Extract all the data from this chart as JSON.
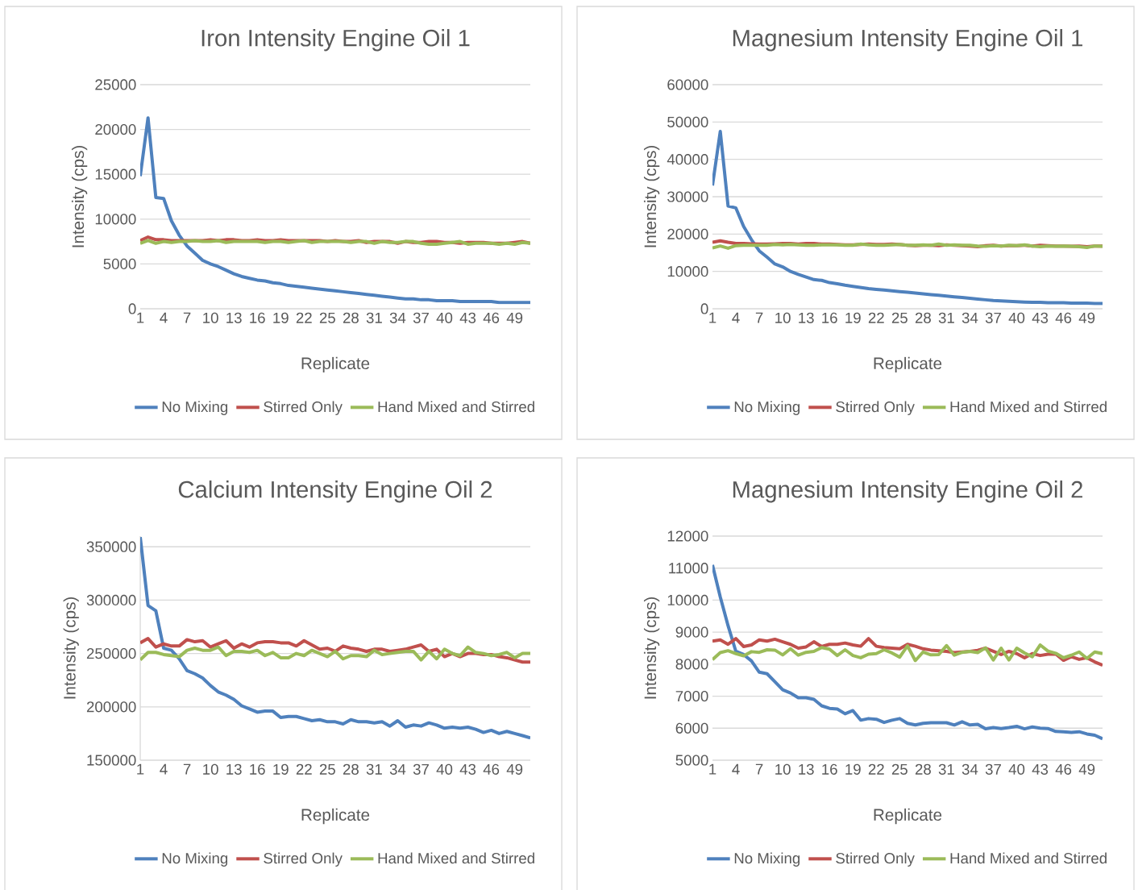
{
  "chart_data": [
    {
      "type": "line",
      "title": "Iron Intensity Engine Oil 1",
      "xlabel": "Replicate",
      "ylabel": "Intensity (cps)",
      "categories": [
        "1",
        null,
        null,
        "4",
        null,
        null,
        "7",
        null,
        null,
        "10",
        null,
        null,
        "13",
        null,
        null,
        "16",
        null,
        null,
        "19",
        null,
        null,
        "22",
        null,
        null,
        "25",
        null,
        null,
        "28",
        null,
        null,
        "31",
        null,
        null,
        "34",
        null,
        null,
        "37",
        null,
        null,
        "40",
        null,
        null,
        "43",
        null,
        null,
        "46",
        null,
        null,
        "49",
        null,
        null
      ],
      "series": [
        {
          "name": "No Mixing",
          "color": "#4f81bd",
          "values": [
            14800,
            21300,
            12400,
            12300,
            9800,
            8200,
            7000,
            6200,
            5400,
            5000,
            4700,
            4300,
            3900,
            3600,
            3400,
            3200,
            3100,
            2900,
            2800,
            2600,
            2500,
            2400,
            2300,
            2200,
            2100,
            2000,
            1900,
            1800,
            1700,
            1600,
            1500,
            1400,
            1300,
            1200,
            1100,
            1100,
            1000,
            1000,
            900,
            900,
            900,
            800,
            800,
            800,
            800,
            800,
            700,
            700,
            700,
            700,
            700
          ]
        },
        {
          "name": "Stirred Only",
          "color": "#c0504d",
          "values": [
            7600,
            8000,
            7700,
            7700,
            7600,
            7600,
            7600,
            7600,
            7600,
            7700,
            7600,
            7700,
            7700,
            7600,
            7600,
            7700,
            7600,
            7600,
            7700,
            7600,
            7600,
            7600,
            7600,
            7600,
            7500,
            7600,
            7500,
            7500,
            7600,
            7400,
            7500,
            7500,
            7500,
            7300,
            7500,
            7400,
            7400,
            7500,
            7500,
            7400,
            7400,
            7300,
            7400,
            7400,
            7400,
            7300,
            7300,
            7300,
            7400,
            7500,
            7300
          ]
        },
        {
          "name": "Hand Mixed and Stirred",
          "color": "#9bbb59",
          "values": [
            7300,
            7600,
            7300,
            7500,
            7400,
            7500,
            7500,
            7600,
            7500,
            7500,
            7600,
            7400,
            7500,
            7500,
            7500,
            7500,
            7400,
            7500,
            7500,
            7400,
            7500,
            7600,
            7400,
            7500,
            7500,
            7500,
            7500,
            7400,
            7500,
            7500,
            7300,
            7500,
            7400,
            7400,
            7500,
            7500,
            7300,
            7200,
            7200,
            7300,
            7400,
            7500,
            7200,
            7300,
            7300,
            7300,
            7200,
            7300,
            7200,
            7400,
            7300
          ]
        }
      ],
      "ylim": [
        0,
        25000
      ],
      "yticks": [
        0,
        5000,
        10000,
        15000,
        20000,
        25000
      ],
      "grid": "y",
      "legend": "bottom"
    },
    {
      "type": "line",
      "title": "Magnesium Intensity Engine Oil 1",
      "xlabel": "Replicate",
      "ylabel": "Intensity (cps)",
      "categories": [
        "1",
        null,
        null,
        "4",
        null,
        null,
        "7",
        null,
        null,
        "10",
        null,
        null,
        "13",
        null,
        null,
        "16",
        null,
        null,
        "19",
        null,
        null,
        "22",
        null,
        null,
        "25",
        null,
        null,
        "28",
        null,
        null,
        "31",
        null,
        null,
        "34",
        null,
        null,
        "37",
        null,
        null,
        "40",
        null,
        null,
        "43",
        null,
        null,
        "46",
        null,
        null,
        "49",
        null,
        null
      ],
      "series": [
        {
          "name": "No Mixing",
          "color": "#4f81bd",
          "values": [
            33000,
            47500,
            27500,
            27000,
            22000,
            18500,
            15500,
            13800,
            12000,
            11200,
            10000,
            9200,
            8500,
            7800,
            7600,
            7000,
            6700,
            6300,
            6000,
            5700,
            5400,
            5200,
            5000,
            4800,
            4600,
            4400,
            4200,
            4000,
            3800,
            3600,
            3400,
            3200,
            3000,
            2800,
            2600,
            2400,
            2200,
            2100,
            2000,
            1900,
            1800,
            1700,
            1700,
            1600,
            1600,
            1600,
            1500,
            1500,
            1500,
            1400,
            1400
          ]
        },
        {
          "name": "Stirred Only",
          "color": "#c0504d",
          "values": [
            17800,
            18200,
            17800,
            17500,
            17500,
            17400,
            17300,
            17300,
            17400,
            17500,
            17500,
            17300,
            17500,
            17500,
            17300,
            17300,
            17200,
            17100,
            17100,
            17200,
            17300,
            17200,
            17200,
            17300,
            17200,
            17000,
            16900,
            17000,
            17000,
            16900,
            17100,
            17000,
            16900,
            16800,
            16600,
            16900,
            17000,
            16800,
            16900,
            16900,
            17000,
            16800,
            17000,
            16900,
            16800,
            16800,
            16700,
            16800,
            16600,
            16800,
            16800
          ]
        },
        {
          "name": "Hand Mixed and Stirred",
          "color": "#9bbb59",
          "values": [
            16300,
            16800,
            16200,
            16900,
            17000,
            17000,
            17000,
            17000,
            17200,
            17100,
            17200,
            17100,
            17000,
            17000,
            17100,
            17100,
            17100,
            17000,
            17000,
            17300,
            17100,
            17000,
            17000,
            17100,
            17200,
            17000,
            17000,
            17100,
            17000,
            17300,
            17000,
            17100,
            17000,
            17000,
            16800,
            16700,
            16900,
            16800,
            17000,
            16900,
            17100,
            16800,
            16600,
            16800,
            16700,
            16800,
            16700,
            16600,
            16400,
            16800,
            16700
          ]
        }
      ],
      "ylim": [
        0,
        60000
      ],
      "yticks": [
        0,
        10000,
        20000,
        30000,
        40000,
        50000,
        60000
      ],
      "grid": "y",
      "legend": "bottom"
    },
    {
      "type": "line",
      "title": "Calcium Intensity Engine Oil 2",
      "xlabel": "Replicate",
      "ylabel": "Intensity (cps)",
      "categories": [
        "1",
        null,
        null,
        "4",
        null,
        null,
        "7",
        null,
        null,
        "10",
        null,
        null,
        "13",
        null,
        null,
        "16",
        null,
        null,
        "19",
        null,
        null,
        "22",
        null,
        null,
        "25",
        null,
        null,
        "28",
        null,
        null,
        "31",
        null,
        null,
        "34",
        null,
        null,
        "37",
        null,
        null,
        "40",
        null,
        null,
        "43",
        null,
        null,
        "46",
        null,
        null,
        "49",
        null,
        null
      ],
      "series": [
        {
          "name": "No Mixing",
          "color": "#4f81bd",
          "values": [
            359000,
            295000,
            290000,
            255000,
            253000,
            245000,
            234000,
            231000,
            227000,
            220000,
            214000,
            211000,
            207000,
            201000,
            198000,
            195000,
            196000,
            196000,
            190000,
            191000,
            191000,
            189000,
            187000,
            188000,
            186000,
            186000,
            184000,
            188000,
            186000,
            186000,
            185000,
            186000,
            182000,
            187000,
            181000,
            183000,
            182000,
            185000,
            183000,
            180000,
            181000,
            180000,
            181000,
            179000,
            176000,
            178000,
            175000,
            177000,
            175000,
            173000,
            171000
          ]
        },
        {
          "name": "Stirred Only",
          "color": "#c0504d",
          "values": [
            260000,
            264000,
            256000,
            259000,
            257000,
            257000,
            263000,
            261000,
            262000,
            256000,
            259000,
            262000,
            255000,
            259000,
            256000,
            260000,
            261000,
            261000,
            260000,
            260000,
            257000,
            262000,
            258000,
            254000,
            255000,
            252000,
            257000,
            255000,
            254000,
            252000,
            254000,
            254000,
            252000,
            253000,
            254000,
            256000,
            258000,
            252000,
            254000,
            247000,
            250000,
            247000,
            250000,
            250000,
            249000,
            249000,
            247000,
            246000,
            244000,
            242000,
            242000
          ]
        },
        {
          "name": "Hand Mixed and Stirred",
          "color": "#9bbb59",
          "values": [
            244000,
            251000,
            251000,
            249000,
            248000,
            247000,
            253000,
            255000,
            253000,
            253000,
            256000,
            248000,
            252000,
            252000,
            251000,
            253000,
            248000,
            251000,
            246000,
            246000,
            250000,
            248000,
            253000,
            250000,
            247000,
            252000,
            245000,
            248000,
            248000,
            247000,
            253000,
            249000,
            250000,
            251000,
            252000,
            252000,
            244000,
            252000,
            245000,
            254000,
            250000,
            248000,
            256000,
            251000,
            250000,
            248000,
            249000,
            251000,
            246000,
            250000,
            250000
          ]
        }
      ],
      "ylim": [
        150000,
        360000
      ],
      "yticks": [
        150000,
        200000,
        250000,
        300000,
        350000
      ],
      "grid": "y",
      "legend": "bottom"
    },
    {
      "type": "line",
      "title": "Magnesium Intensity Engine Oil 2",
      "xlabel": "Replicate",
      "ylabel": "Intensity (cps)",
      "categories": [
        "1",
        null,
        null,
        "4",
        null,
        null,
        "7",
        null,
        null,
        "10",
        null,
        null,
        "13",
        null,
        null,
        "16",
        null,
        null,
        "19",
        null,
        null,
        "22",
        null,
        null,
        "25",
        null,
        null,
        "28",
        null,
        null,
        "31",
        null,
        null,
        "34",
        null,
        null,
        "37",
        null,
        null,
        "40",
        null,
        null,
        "43",
        null,
        null,
        "46",
        null,
        null,
        "49",
        null,
        null
      ],
      "series": [
        {
          "name": "No Mixing",
          "color": "#4f81bd",
          "values": [
            11100,
            10100,
            9200,
            8400,
            8300,
            8100,
            7750,
            7700,
            7450,
            7200,
            7100,
            6950,
            6950,
            6900,
            6700,
            6620,
            6600,
            6450,
            6550,
            6250,
            6300,
            6280,
            6180,
            6250,
            6300,
            6150,
            6100,
            6150,
            6170,
            6170,
            6170,
            6100,
            6200,
            6100,
            6120,
            5980,
            6020,
            5990,
            6020,
            6060,
            5980,
            6040,
            6000,
            5990,
            5900,
            5890,
            5870,
            5890,
            5820,
            5780,
            5670
          ]
        },
        {
          "name": "Stirred Only",
          "color": "#c0504d",
          "values": [
            8720,
            8760,
            8620,
            8800,
            8550,
            8600,
            8760,
            8720,
            8780,
            8700,
            8620,
            8500,
            8540,
            8700,
            8550,
            8620,
            8620,
            8660,
            8600,
            8560,
            8800,
            8560,
            8520,
            8500,
            8480,
            8620,
            8560,
            8480,
            8440,
            8420,
            8400,
            8360,
            8380,
            8400,
            8430,
            8500,
            8400,
            8300,
            8400,
            8330,
            8200,
            8330,
            8270,
            8310,
            8320,
            8120,
            8230,
            8150,
            8200,
            8070,
            7970
          ]
        },
        {
          "name": "Hand Mixed and Stirred",
          "color": "#9bbb59",
          "values": [
            8140,
            8360,
            8420,
            8330,
            8260,
            8390,
            8370,
            8450,
            8440,
            8290,
            8480,
            8280,
            8370,
            8400,
            8520,
            8470,
            8270,
            8450,
            8270,
            8200,
            8310,
            8330,
            8450,
            8350,
            8220,
            8570,
            8110,
            8380,
            8290,
            8300,
            8580,
            8280,
            8370,
            8400,
            8360,
            8510,
            8130,
            8500,
            8130,
            8500,
            8350,
            8230,
            8600,
            8410,
            8340,
            8200,
            8280,
            8380,
            8180,
            8380,
            8330
          ]
        }
      ],
      "ylim": [
        5000,
        12000
      ],
      "yticks": [
        5000,
        6000,
        7000,
        8000,
        9000,
        10000,
        11000,
        12000
      ],
      "grid": "y",
      "legend": "bottom"
    }
  ]
}
